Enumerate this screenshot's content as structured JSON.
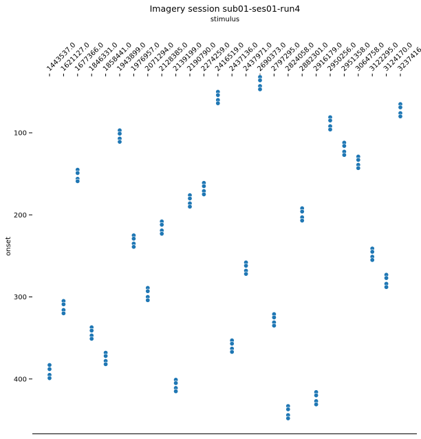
{
  "chart_data": {
    "type": "scatter",
    "title": "Imagery session sub01-ses01-run4",
    "xlabel": "stimulus",
    "ylabel": "onset",
    "x_axis_position": "top",
    "y_inverted": true,
    "ylim": [
      460,
      20
    ],
    "y_ticks": [
      100,
      200,
      300,
      400
    ],
    "grid": false,
    "marker_color": "#1f77b4",
    "categories": [
      "1443537.0",
      "1621127.0",
      "1677366.0",
      "1846331.0",
      "1858441.0",
      "1943899.0",
      "1976957.0",
      "2071294.0",
      "2128385.0",
      "2139199.0",
      "2190790.0",
      "2274259.0",
      "2416519.0",
      "2437136.0",
      "2437971.0",
      "2690373.0",
      "2797295.0",
      "2824058.0",
      "2882301.0",
      "2916179.0",
      "2950256.0",
      "2951358.0",
      "3064758.0",
      "3122295.0",
      "3124170.0",
      "3237416.0"
    ],
    "series": [
      {
        "points": [
          {
            "x": "1443537.0",
            "y": [
              383,
              388,
              395,
              399
            ]
          },
          {
            "x": "1621127.0",
            "y": [
              305,
              309,
              316,
              320
            ]
          },
          {
            "x": "1677366.0",
            "y": [
              145,
              149,
              156,
              159
            ]
          },
          {
            "x": "1846331.0",
            "y": [
              337,
              341,
              347,
              351
            ]
          },
          {
            "x": "1858441.0",
            "y": [
              368,
              372,
              378,
              382
            ]
          },
          {
            "x": "1943899.0",
            "y": [
              97,
              101,
              107,
              111
            ]
          },
          {
            "x": "1976957.0",
            "y": [
              225,
              229,
              235,
              239
            ]
          },
          {
            "x": "2071294.0",
            "y": [
              289,
              293,
              300,
              304
            ]
          },
          {
            "x": "2128385.0",
            "y": [
              208,
              212,
              219,
              223
            ]
          },
          {
            "x": "2139199.0",
            "y": [
              401,
              405,
              411,
              415
            ]
          },
          {
            "x": "2190790.0",
            "y": [
              176,
              180,
              186,
              190
            ]
          },
          {
            "x": "2274259.0",
            "y": [
              161,
              165,
              171,
              175
            ]
          },
          {
            "x": "2416519.0",
            "y": [
              50,
              54,
              60,
              64
            ]
          },
          {
            "x": "2437136.0",
            "y": [
              353,
              357,
              363,
              367
            ]
          },
          {
            "x": "2437971.0",
            "y": [
              258,
              262,
              268,
              272
            ]
          },
          {
            "x": "2690373.0",
            "y": [
              32,
              36,
              43,
              47
            ]
          },
          {
            "x": "2797295.0",
            "y": [
              321,
              325,
              331,
              335
            ]
          },
          {
            "x": "2824058.0",
            "y": [
              433,
              437,
              444,
              448
            ]
          },
          {
            "x": "2882301.0",
            "y": [
              192,
              196,
              203,
              207
            ]
          },
          {
            "x": "2916179.0",
            "y": [
              416,
              420,
              427,
              431
            ]
          },
          {
            "x": "2950256.0",
            "y": [
              81,
              85,
              92,
              96
            ]
          },
          {
            "x": "2951358.0",
            "y": [
              112,
              116,
              123,
              127
            ]
          },
          {
            "x": "3064758.0",
            "y": [
              129,
              133,
              139,
              143
            ]
          },
          {
            "x": "3122295.0",
            "y": [
              241,
              245,
              251,
              255
            ]
          },
          {
            "x": "3124170.0",
            "y": [
              273,
              277,
              284,
              288
            ]
          },
          {
            "x": "3237416.0",
            "y": [
              65,
              69,
              76,
              80
            ]
          }
        ]
      }
    ]
  }
}
